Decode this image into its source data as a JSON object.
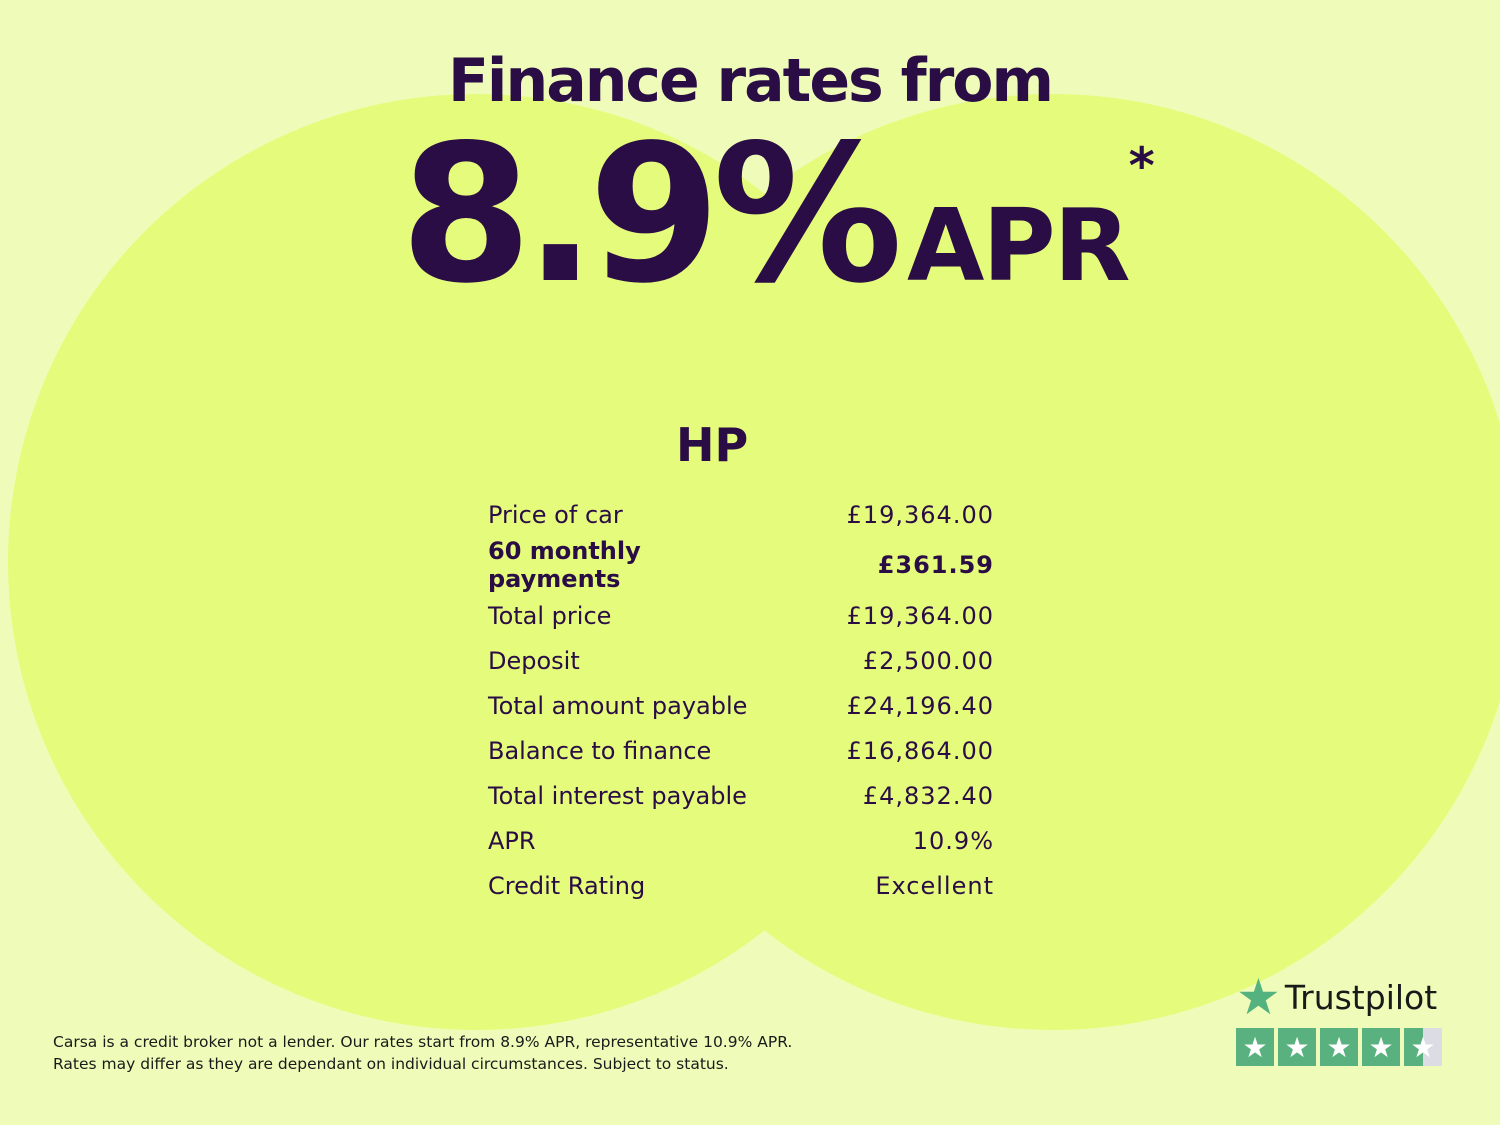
{
  "headline": "Finance rates from",
  "rate": {
    "value": "8.9%",
    "unit": "APR",
    "footnote_mark": "*"
  },
  "product": "HP",
  "rows": [
    {
      "label": "Price of car",
      "value": "£19,364.00",
      "bold": false
    },
    {
      "label": "60 monthly payments",
      "value": "£361.59",
      "bold": true
    },
    {
      "label": "Total price",
      "value": "£19,364.00",
      "bold": false
    },
    {
      "label": "Deposit",
      "value": "£2,500.00",
      "bold": false
    },
    {
      "label": "Total amount payable",
      "value": "£24,196.40",
      "bold": false
    },
    {
      "label": "Balance to finance",
      "value": "£16,864.00",
      "bold": false
    },
    {
      "label": "Total interest payable",
      "value": "£4,832.40",
      "bold": false
    },
    {
      "label": "APR",
      "value": "10.9%",
      "bold": false
    },
    {
      "label": "Credit Rating",
      "value": "Excellent",
      "bold": false
    }
  ],
  "disclaimer": {
    "line1": "Carsa is a credit broker not a lender. Our rates start from 8.9% APR, representative 10.9% APR.",
    "line2": "Rates may differ as they are dependant on individual circumstances. Subject to status."
  },
  "trustpilot": {
    "name": "Trustpilot",
    "rating_stars": 4.5,
    "max_stars": 5
  },
  "colors": {
    "background": "#effcb9",
    "circle": "#e5fb7b",
    "text": "#2a0d45",
    "trustpilot_green": "#59b180"
  }
}
